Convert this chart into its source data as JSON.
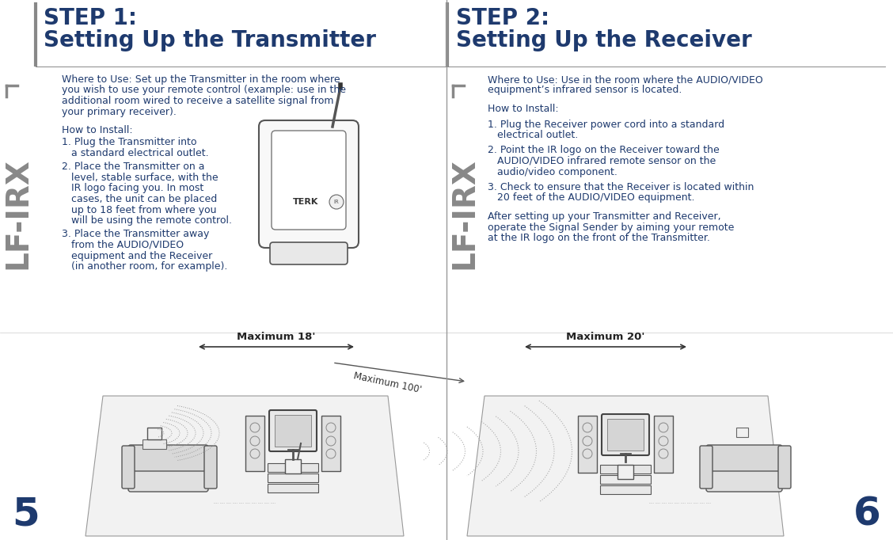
{
  "bg_color": "#ffffff",
  "title_color": "#1e3a6e",
  "body_color": "#1e3a6e",
  "divider_color": "#aaaaaa",
  "step1_title_line1": "STEP 1:",
  "step1_title_line2": "Setting Up the Transmitter",
  "step2_title_line1": "STEP 2:",
  "step2_title_line2": "Setting Up the Receiver",
  "step1_where": "Where to Use: Set up the Transmitter in the room where\nyou wish to use your remote control (example: use in the\nadditional room wired to receive a satellite signal from\nyour primary receiver).",
  "step1_how": "How to Install:",
  "step1_item1a": "1. Plug the Transmitter into",
  "step1_item1b": "   a standard electrical outlet.",
  "step1_item2a": "2. Place the Transmitter on a",
  "step1_item2b": "   level, stable surface, with the",
  "step1_item2c": "   IR logo facing you. In most",
  "step1_item2d": "   cases, the unit can be placed",
  "step1_item2e": "   up to 18 feet from where you",
  "step1_item2f": "   will be using the remote control.",
  "step1_item3a": "3. Place the Transmitter away",
  "step1_item3b": "   from the AUDIO/VIDEO",
  "step1_item3c": "   equipment and the Receiver",
  "step1_item3d": "   (in another room, for example).",
  "step2_where": "Where to Use: Use in the room where the AUDIO/VIDEO\nequipment’s infrared sensor is located.",
  "step2_how": "How to Install:",
  "step2_item1a": "1. Plug the Receiver power cord into a standard",
  "step2_item1b": "   electrical outlet.",
  "step2_item2a": "2. Point the IR logo on the Receiver toward the",
  "step2_item2b": "   AUDIO/VIDEO infrared remote sensor on the",
  "step2_item2c": "   audio/video component.",
  "step2_item3a": "3. Check to ensure that the Receiver is located within",
  "step2_item3b": "   20 feet of the AUDIO/VIDEO equipment.",
  "step2_after": "After setting up your Transmitter and Receiver,\noperate the Signal Sender by aiming your remote\nat the IR logo on the front of the Transmitter.",
  "lf_irx": "LF-IRX",
  "page_left": "5",
  "page_right": "6",
  "max18": "Maximum 18'",
  "max20": "Maximum 20'",
  "max100": "Maximum 100'"
}
